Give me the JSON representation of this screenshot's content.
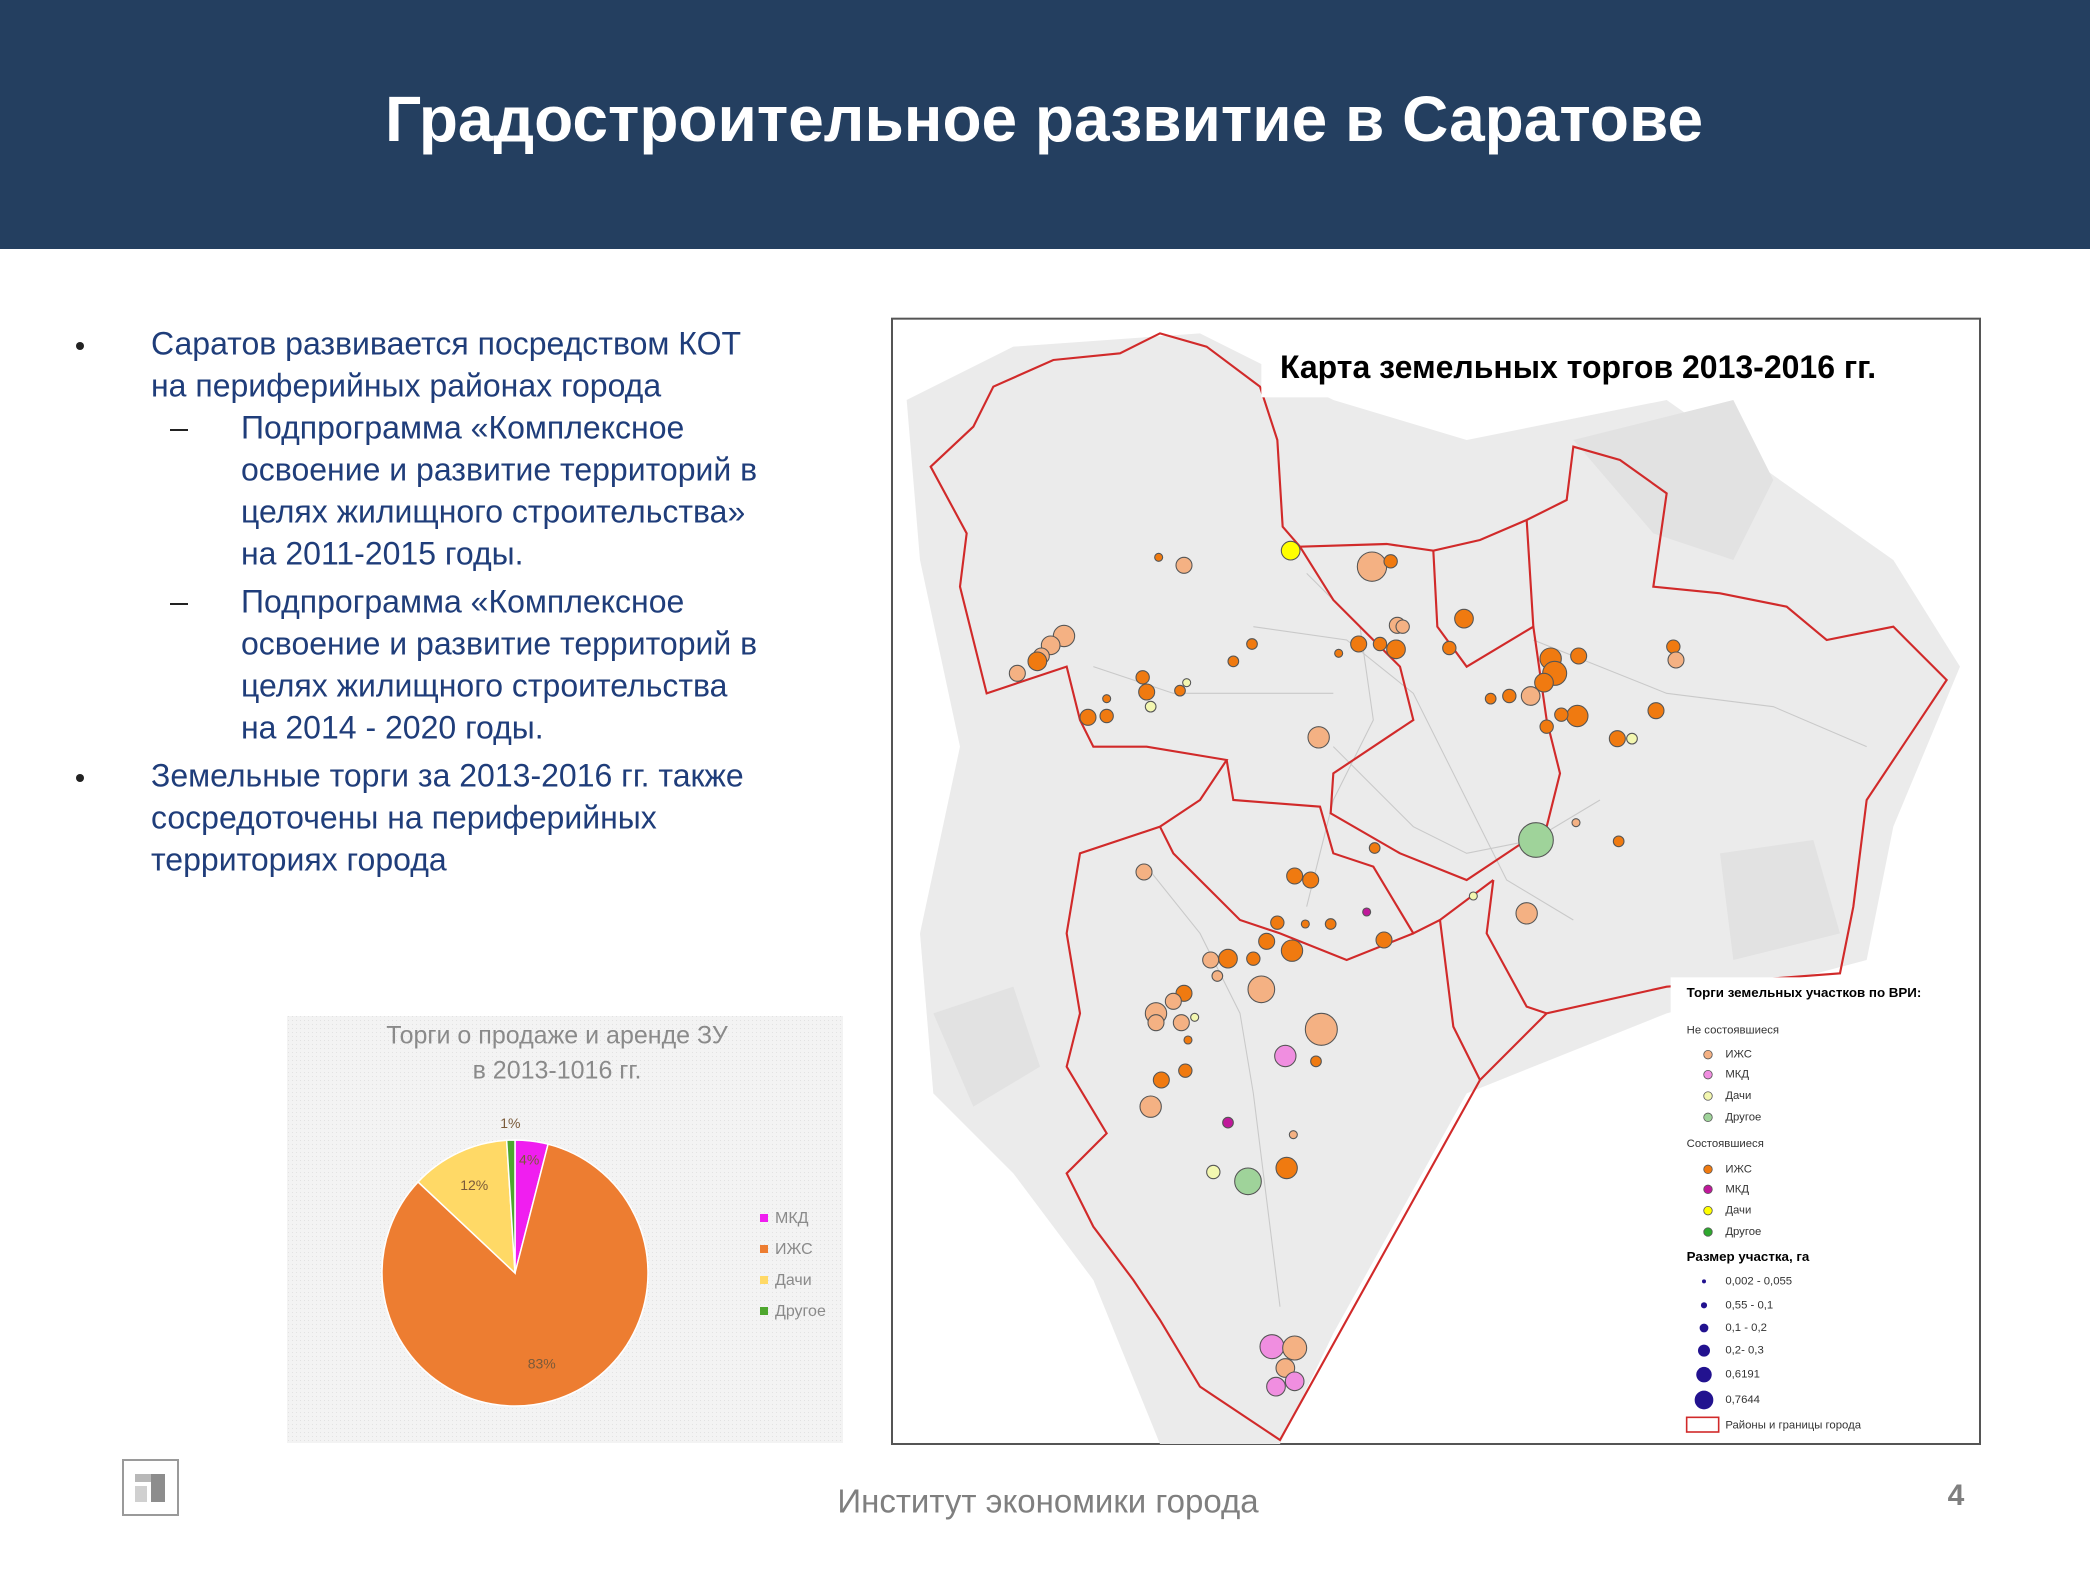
{
  "header": {
    "title": "Градостроительное развитие в Саратове"
  },
  "bullets": [
    {
      "lines": [
        "Саратов развивается посредством КОТ",
        "на периферийных районах города"
      ],
      "subitems": [
        {
          "lines": [
            "Подпрограмма «Комплексное",
            "освоение и развитие территорий в",
            "целях жилищного строительства»",
            "на 2011-2015 годы."
          ]
        },
        {
          "lines": [
            "Подпрограмма «Комплексное",
            "освоение и развитие территорий в",
            "целях жилищного строительства",
            "на 2014 - 2020 годы."
          ]
        }
      ]
    },
    {
      "lines": [
        "Земельные торги за 2013-2016 гг. также",
        "сосредоточены на периферийных",
        "территориях города"
      ],
      "subitems": []
    }
  ],
  "chart_data": {
    "type": "pie",
    "title": "Торги о продаже и аренде ЗУ",
    "subtitle": "в 2013-1016 гг.",
    "categories": [
      "МКД",
      "ИЖС",
      "Дачи",
      "Другое"
    ],
    "values": [
      4,
      83,
      12,
      1
    ],
    "value_labels": [
      "4%",
      "83%",
      "12%",
      "1%"
    ],
    "colors": [
      "#f01ef0",
      "#ed7d31",
      "#ffd966",
      "#4ea72e"
    ]
  },
  "map": {
    "title": "Карта земельных торгов 2013-2016 гг.",
    "legend": {
      "title": "Торги земельных участков по ВРИ:",
      "groups": [
        {
          "name": "Не состоявшиеся",
          "items": [
            {
              "label": "ИЖС",
              "color": "#f4b183"
            },
            {
              "label": "МКД",
              "color": "#f08ee0"
            },
            {
              "label": "Дачи",
              "color": "#f3f7b0"
            },
            {
              "label": "Другое",
              "color": "#9fd39a"
            }
          ]
        },
        {
          "name": "Состоявшиеся",
          "items": [
            {
              "label": "ИЖС",
              "color": "#f07a10"
            },
            {
              "label": "МКД",
              "color": "#c0189a"
            },
            {
              "label": "Дачи",
              "color": "#ffff00"
            },
            {
              "label": "Другое",
              "color": "#2ea82e"
            }
          ]
        }
      ],
      "size_title": "Размер участка, га",
      "sizes": [
        "0,002 - 0,055",
        "0,55 - 0,1",
        "0,1 - 0,2",
        "0,2- 0,3",
        "0,6191",
        "0,7644"
      ],
      "boundary": "Районы и границы города"
    }
  },
  "footer": {
    "text": "Институт экономики города",
    "page": 4
  }
}
